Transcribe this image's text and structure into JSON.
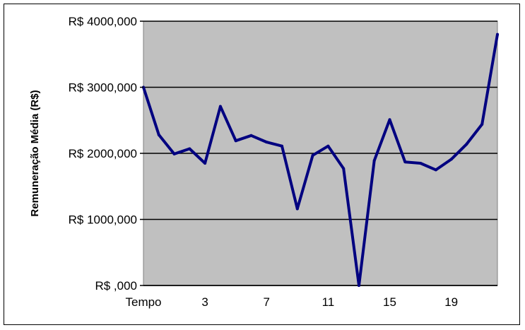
{
  "chart_data": {
    "type": "line",
    "title": "",
    "xlabel": "",
    "ylabel": "Remuneração Média (R$)",
    "ylim": [
      0,
      4000
    ],
    "y_ticks": [
      0,
      1000,
      2000,
      3000,
      4000
    ],
    "y_tick_labels": [
      "R$ ,000",
      "R$ 1000,000",
      "R$ 2000,000",
      "R$ 3000,000",
      "R$ 4000,000"
    ],
    "x_tick_labels": [
      {
        "index": 0,
        "label": "Tempo"
      },
      {
        "index": 4,
        "label": "3"
      },
      {
        "index": 8,
        "label": "7"
      },
      {
        "index": 12,
        "label": "11"
      },
      {
        "index": 16,
        "label": "15"
      },
      {
        "index": 20,
        "label": "19"
      }
    ],
    "grid": "horizontal",
    "legend": "none",
    "series": [
      {
        "values": [
          3000,
          2280,
          1990,
          2070,
          1850,
          2710,
          2190,
          2270,
          2170,
          2110,
          1160,
          1970,
          2110,
          1770,
          0,
          1890,
          2510,
          1870,
          1850,
          1750,
          1910,
          2140,
          2440,
          3800
        ]
      }
    ],
    "colors": {
      "plot_background": "#c0c0c0",
      "line": "#000080",
      "gridline": "#000000"
    }
  }
}
